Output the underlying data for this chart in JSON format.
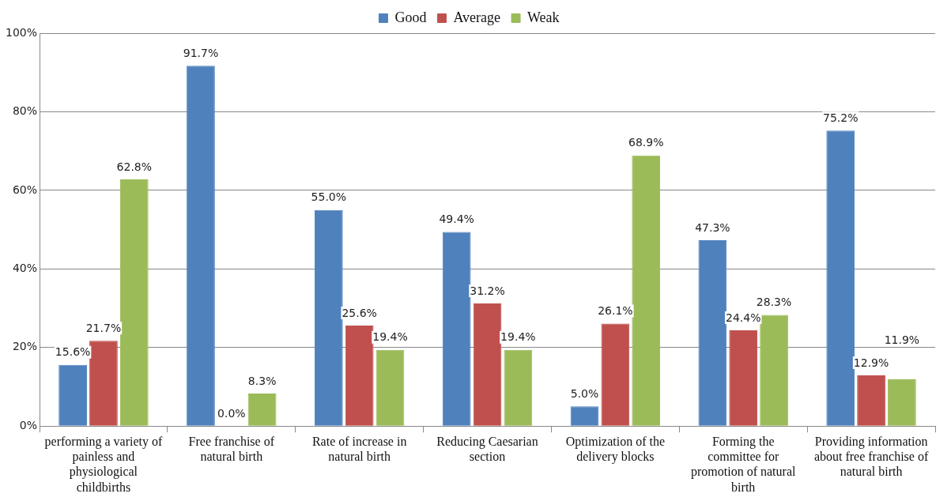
{
  "chart_data": {
    "type": "bar",
    "categories": [
      "performing a variety of painless and physiological childbirths",
      "Free franchise of natural birth",
      "Rate of increase in natural birth",
      "Reducing Caesarian section",
      "Optimization of the delivery blocks",
      "Forming the committee for promotion of natural birth",
      "Providing information about free franchise of natural birth"
    ],
    "series": [
      {
        "name": "Good",
        "color": "#4f81bd",
        "values": [
          15.6,
          91.7,
          55.0,
          49.4,
          5.0,
          47.3,
          75.2
        ],
        "value_labels": [
          "15.6%",
          "91.7%",
          "55.0%",
          "49.4%",
          "5.0%",
          "47.3%",
          "75.2%"
        ]
      },
      {
        "name": "Average",
        "color": "#c0504d",
        "values": [
          21.7,
          0.0,
          25.6,
          31.2,
          26.1,
          24.4,
          12.9
        ],
        "value_labels": [
          "21.7%",
          "0.0%",
          "25.6%",
          "31.2%",
          "26.1%",
          "24.4%",
          "12.9%"
        ]
      },
      {
        "name": "Weak",
        "color": "#9bbb59",
        "values": [
          62.8,
          8.3,
          19.4,
          19.4,
          68.9,
          28.3,
          11.9
        ],
        "value_labels": [
          "62.8%",
          "8.3%",
          "19.4%",
          "19.4%",
          "68.9%",
          "28.3%",
          "11.9%"
        ]
      }
    ],
    "ylim": [
      0,
      100
    ],
    "yticks": [
      {
        "value": 0,
        "label": "0%"
      },
      {
        "value": 20,
        "label": "20%"
      },
      {
        "value": 40,
        "label": "40%"
      },
      {
        "value": 60,
        "label": "60%"
      },
      {
        "value": 80,
        "label": "80%"
      },
      {
        "value": 100,
        "label": "100%"
      }
    ],
    "grid": "y",
    "legend": "top"
  }
}
